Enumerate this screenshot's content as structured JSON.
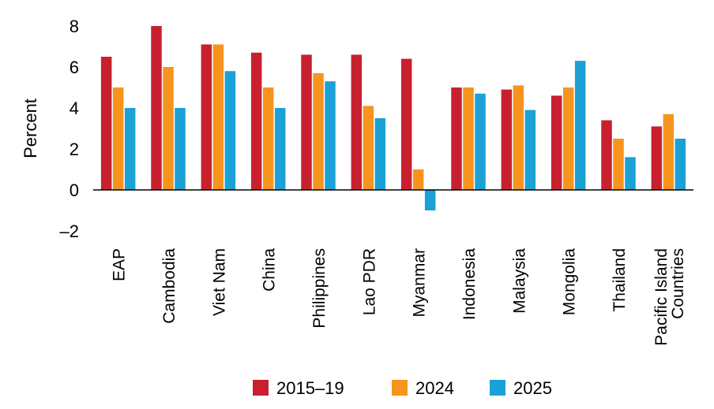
{
  "chart_data": {
    "type": "bar",
    "title": "",
    "xlabel": "",
    "ylabel": "Percent",
    "ylim": [
      -2,
      8
    ],
    "yticks": [
      8,
      6,
      4,
      2,
      0,
      -2
    ],
    "ytick_labels": [
      "8",
      "6",
      "4",
      "2",
      "0",
      "–2"
    ],
    "grid": false,
    "legend_position": "bottom",
    "categories": [
      [
        "EAP"
      ],
      [
        "Cambodia"
      ],
      [
        "Viet Nam"
      ],
      [
        "China"
      ],
      [
        "Philippines"
      ],
      [
        "Lao PDR"
      ],
      [
        "Myanmar"
      ],
      [
        "Indonesia"
      ],
      [
        "Malaysia"
      ],
      [
        "Mongolia"
      ],
      [
        "Thailand"
      ],
      [
        "Pacific Island",
        "Countries"
      ]
    ],
    "series": [
      {
        "name": "2015–19",
        "color": "#C8202F",
        "values": [
          6.5,
          8.0,
          7.1,
          6.7,
          6.6,
          6.6,
          6.4,
          5.0,
          4.9,
          4.6,
          3.4,
          3.1
        ]
      },
      {
        "name": "2024",
        "color": "#F7941D",
        "values": [
          5.0,
          6.0,
          7.1,
          5.0,
          5.7,
          4.1,
          1.0,
          5.0,
          5.1,
          5.0,
          2.5,
          3.7
        ]
      },
      {
        "name": "2025",
        "color": "#1BA1D6",
        "values": [
          4.0,
          4.0,
          5.8,
          4.0,
          5.3,
          3.5,
          -1.0,
          4.7,
          3.9,
          6.3,
          1.6,
          2.5
        ]
      }
    ]
  }
}
